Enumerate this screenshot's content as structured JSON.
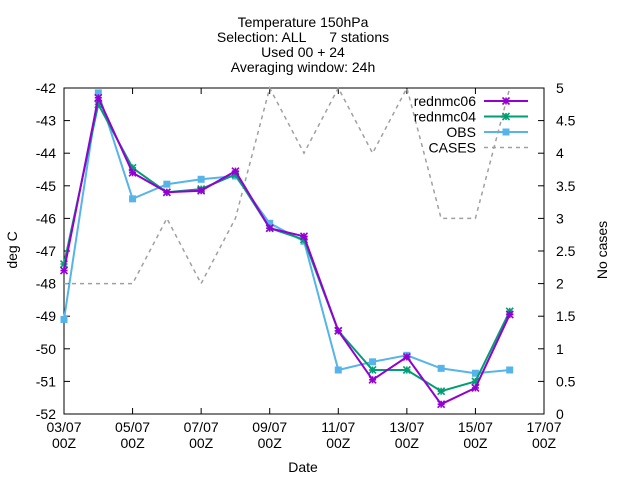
{
  "chart_data": {
    "type": "line",
    "title_lines": [
      "Temperature 150hPa",
      "Selection: ALL      7 stations",
      "Used 00 + 24",
      "Averaging window: 24h"
    ],
    "xlabel": "Date",
    "ylabel": "deg C",
    "y2label": "No cases",
    "xlim": [
      0,
      14
    ],
    "ylim": [
      -52,
      -42
    ],
    "y2lim": [
      0,
      5
    ],
    "x_ticks": [
      {
        "x": 0,
        "line1": "03/07",
        "line2": "00Z"
      },
      {
        "x": 2,
        "line1": "05/07",
        "line2": "00Z"
      },
      {
        "x": 4,
        "line1": "07/07",
        "line2": "00Z"
      },
      {
        "x": 6,
        "line1": "09/07",
        "line2": "00Z"
      },
      {
        "x": 8,
        "line1": "11/07",
        "line2": "00Z"
      },
      {
        "x": 10,
        "line1": "13/07",
        "line2": "00Z"
      },
      {
        "x": 12,
        "line1": "15/07",
        "line2": "00Z"
      },
      {
        "x": 14,
        "line1": "17/07",
        "line2": "00Z"
      }
    ],
    "y_ticks": [
      -52,
      -51,
      -50,
      -49,
      -48,
      -47,
      -46,
      -45,
      -44,
      -43,
      -42
    ],
    "y2_ticks": [
      "0",
      "0.5",
      "1",
      "1.5",
      "2",
      "2.5",
      "3",
      "3.5",
      "4",
      "4.5",
      "5"
    ],
    "x": [
      0,
      1,
      2,
      3,
      4,
      5,
      6,
      7,
      8,
      9,
      10,
      11,
      12,
      13
    ],
    "series": [
      {
        "name": "rednmc06",
        "color": "#9400d3",
        "marker": "star",
        "axis": "y1",
        "values": [
          -47.6,
          -42.3,
          -44.6,
          -45.2,
          -45.15,
          -44.55,
          -46.3,
          -46.55,
          -49.45,
          -50.95,
          -50.25,
          -51.7,
          -51.2,
          -48.95
        ]
      },
      {
        "name": "rednmc04",
        "color": "#009e73",
        "marker": "star",
        "axis": "y1",
        "values": [
          -47.4,
          -42.5,
          -44.45,
          -45.2,
          -45.1,
          -44.65,
          -46.3,
          -46.65,
          -49.45,
          -50.65,
          -50.65,
          -51.3,
          -51.0,
          -48.85
        ]
      },
      {
        "name": "OBS",
        "color": "#56b4e9",
        "marker": "box",
        "axis": "y1",
        "values": [
          -49.1,
          -42.15,
          -45.4,
          -44.95,
          -44.8,
          -44.7,
          -46.15,
          -46.7,
          -50.65,
          -50.4,
          -50.2,
          -50.6,
          -50.75,
          -50.65
        ]
      },
      {
        "name": "CASES",
        "color": "#a0a0a0",
        "marker": "none",
        "axis": "y2",
        "dash": true,
        "values": [
          2,
          2,
          2,
          3,
          2,
          3,
          5,
          4,
          5,
          4,
          5,
          3,
          3,
          5
        ]
      }
    ],
    "legend_position": "top-right",
    "grid": false
  }
}
